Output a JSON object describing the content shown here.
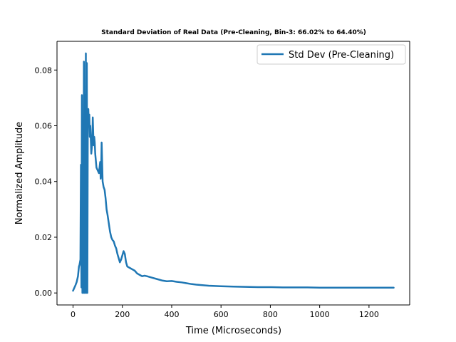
{
  "chart_data": {
    "type": "line",
    "title": "Standard Deviation of Real Data (Pre-Cleaning, Bin-3: 66.02% to 64.40%)",
    "xlabel": "Time (Microseconds)",
    "ylabel": "Normalized Amplitude",
    "xlim": [
      -65,
      1365
    ],
    "ylim": [
      -0.0043,
      0.0903
    ],
    "xticks": [
      0,
      200,
      400,
      600,
      800,
      1000,
      1200
    ],
    "xtick_labels": [
      "0",
      "200",
      "400",
      "600",
      "800",
      "1000",
      "1200"
    ],
    "yticks": [
      0.0,
      0.02,
      0.04,
      0.06,
      0.08
    ],
    "ytick_labels": [
      "0.00",
      "0.02",
      "0.04",
      "0.06",
      "0.08"
    ],
    "grid": false,
    "legend": {
      "position": "top-right",
      "entries": [
        "Std Dev (Pre-Cleaning)"
      ]
    },
    "series": [
      {
        "name": "Std Dev (Pre-Cleaning)",
        "color": "#1f77b4",
        "x": [
          0,
          5,
          10,
          15,
          20,
          24,
          26,
          28,
          30,
          32,
          34,
          36,
          38,
          40,
          42,
          44,
          46,
          48,
          50,
          52,
          54,
          56,
          58,
          60,
          62,
          64,
          66,
          68,
          70,
          72,
          74,
          76,
          78,
          80,
          82,
          84,
          86,
          88,
          90,
          95,
          100,
          105,
          110,
          112,
          114,
          116,
          118,
          120,
          124,
          128,
          132,
          136,
          140,
          145,
          150,
          155,
          160,
          165,
          170,
          175,
          180,
          185,
          190,
          195,
          200,
          205,
          210,
          215,
          220,
          230,
          240,
          250,
          260,
          270,
          280,
          290,
          300,
          320,
          340,
          360,
          380,
          400,
          420,
          440,
          460,
          480,
          500,
          550,
          600,
          650,
          700,
          750,
          800,
          850,
          900,
          950,
          1000,
          1050,
          1100,
          1150,
          1200,
          1250,
          1300
        ],
        "y": [
          0.0008,
          0.0018,
          0.0028,
          0.004,
          0.006,
          0.0095,
          0.01,
          0.011,
          0.012,
          0.046,
          0.002,
          0.071,
          0.0,
          0.06,
          0.0,
          0.083,
          0.0,
          0.071,
          0.0,
          0.086,
          0.0,
          0.0825,
          0.0,
          0.063,
          0.066,
          0.061,
          0.064,
          0.056,
          0.06,
          0.055,
          0.05,
          0.052,
          0.054,
          0.063,
          0.057,
          0.053,
          0.056,
          0.054,
          0.05,
          0.045,
          0.044,
          0.043,
          0.047,
          0.041,
          0.044,
          0.054,
          0.047,
          0.04,
          0.038,
          0.037,
          0.034,
          0.03,
          0.028,
          0.025,
          0.022,
          0.02,
          0.019,
          0.0185,
          0.017,
          0.016,
          0.014,
          0.0125,
          0.011,
          0.012,
          0.0135,
          0.015,
          0.014,
          0.011,
          0.0095,
          0.009,
          0.0085,
          0.008,
          0.007,
          0.0065,
          0.006,
          0.0062,
          0.006,
          0.0055,
          0.005,
          0.0045,
          0.0042,
          0.0043,
          0.004,
          0.0038,
          0.0035,
          0.0032,
          0.003,
          0.0026,
          0.0024,
          0.0023,
          0.0022,
          0.0021,
          0.0021,
          0.002,
          0.002,
          0.002,
          0.0019,
          0.0019,
          0.0019,
          0.0019,
          0.0019,
          0.0019,
          0.0019
        ]
      }
    ]
  }
}
